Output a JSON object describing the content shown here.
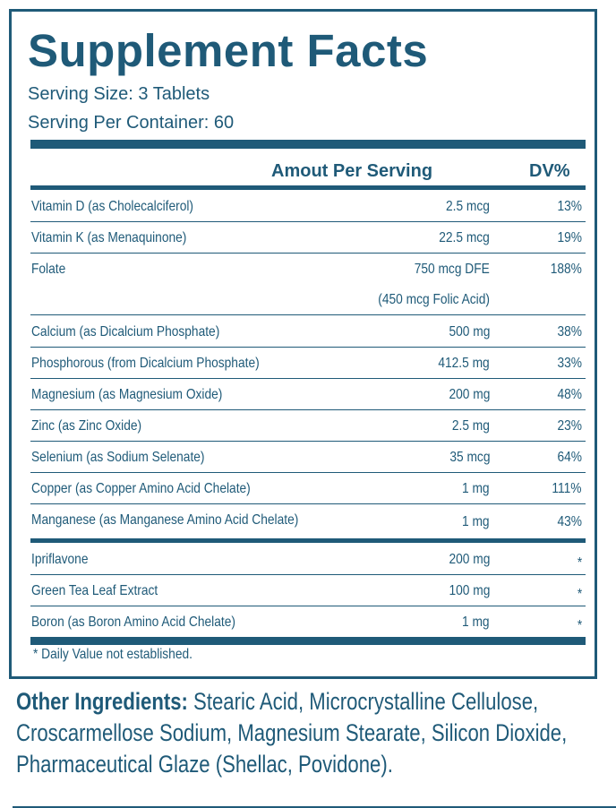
{
  "title": "Supplement Facts",
  "serving_size": "Serving Size: 3 Tablets",
  "serving_per_container": "Serving Per Container: 60",
  "header": {
    "amount": "Amout Per Serving",
    "dv": "DV%"
  },
  "rows": [
    {
      "name": "Vitamin D (as Cholecalciferol)",
      "amount": "2.5  mcg",
      "dv": "13%"
    },
    {
      "name": "Vitamin K (as Menaquinone)",
      "amount": "22.5  mcg",
      "dv": "19%"
    },
    {
      "name": "Folate",
      "amount": "750 mcg DFE",
      "amount2": "(450 mcg Folic Acid)",
      "dv": "188%"
    },
    {
      "name": "Calcium (as Dicalcium Phosphate)",
      "amount": "500  mg",
      "dv": "38%"
    },
    {
      "name": "Phosphorous (from Dicalcium Phosphate)",
      "amount": "412.5  mg",
      "dv": "33%"
    },
    {
      "name": "Magnesium (as Magnesium Oxide)",
      "amount": "200  mg",
      "dv": "48%"
    },
    {
      "name": "Zinc (as Zinc Oxide)",
      "amount": "2.5  mg",
      "dv": "23%"
    },
    {
      "name": "Selenium (as Sodium Selenate)",
      "amount": "35 mcg",
      "dv": "64%"
    },
    {
      "name": "Copper (as Copper Amino Acid Chelate)",
      "amount": "1  mg",
      "dv": "111%"
    },
    {
      "name": "Manganese (as Manganese Amino Acid Chelate)",
      "amount": "1  mg",
      "dv": "43%"
    },
    {
      "name": "Ipriflavone",
      "amount": "200  mg",
      "dv": "*"
    },
    {
      "name": "Green Tea Leaf Extract",
      "amount": "100  mg",
      "dv": "*"
    },
    {
      "name": "Boron (as Boron Amino Acid Chelate)",
      "amount": "1  mg",
      "dv": "*"
    }
  ],
  "footnote": "* Daily Value not established.",
  "other_ingredients": {
    "label": "Other Ingredients:",
    "text": " Stearic Acid, Microcrystalline Cellulose, Croscarmellose Sodium, Magnesium Stearate, Silicon Dioxide, Pharmaceutical Glaze (Shellac, Povidone)."
  },
  "colors": {
    "primary": "#1f5a78"
  }
}
